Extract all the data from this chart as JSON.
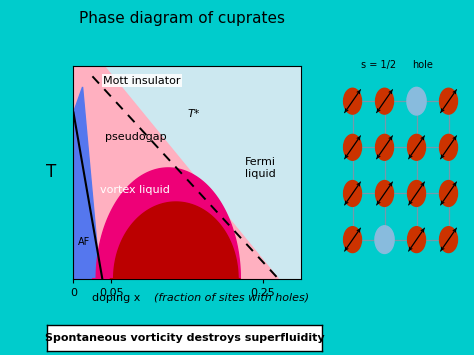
{
  "title": "Phase diagram of cuprates",
  "subtitle": "Spontaneous vorticity destroys superfluidity",
  "xlabel": "doping x",
  "xlabel2": "(fraction of sites with holes)",
  "ylabel": "T",
  "xticks": [
    0,
    0.05,
    0.25
  ],
  "background_color": "#00CCCC",
  "plot_bg_color": "#CCE8F0",
  "fig_width": 4.74,
  "fig_height": 3.55,
  "xlim": [
    0,
    0.3
  ],
  "ylim": [
    0,
    1.0
  ],
  "pseudogap_color": "#FFB0C0",
  "vortex_color": "#EE0077",
  "dsc_color": "#BB0000",
  "af_color": "#5577EE",
  "s_label": "s = 1/2",
  "hole_label": "hole",
  "spin_color": "#CC3300",
  "hole_color": "#88BBDD"
}
